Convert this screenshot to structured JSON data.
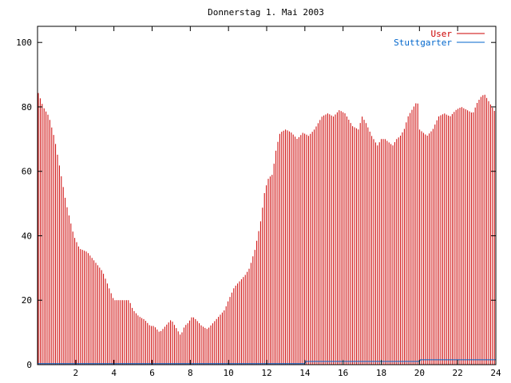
{
  "chart_data": {
    "type": "bar",
    "title": "Donnerstag 1. Mai 2003",
    "xlabel": "",
    "ylabel": "",
    "xlim": [
      0,
      24
    ],
    "ylim": [
      0,
      105
    ],
    "x_ticks": [
      2,
      4,
      6,
      8,
      10,
      12,
      14,
      16,
      18,
      20,
      22,
      24
    ],
    "y_ticks": [
      0,
      20,
      40,
      60,
      80,
      100
    ],
    "grid": false,
    "legend_position": "top-right",
    "colors": {
      "User": "#cc0000",
      "Stuttgarter": "#0066cc"
    },
    "x": [
      0,
      1,
      2,
      3,
      4,
      5,
      6,
      7,
      8,
      9,
      10,
      11,
      12,
      13,
      14,
      15,
      16,
      17,
      18,
      19,
      20,
      21,
      22,
      23,
      24
    ],
    "series": [
      {
        "name": "User",
        "y_keypoints": [
          85,
          80,
          77,
          70,
          60,
          50,
          40,
          36,
          35,
          32,
          29,
          20,
          20,
          20,
          17,
          15,
          14,
          12,
          12,
          10,
          12,
          14,
          12,
          9,
          12,
          13,
          15,
          14,
          12,
          11,
          13,
          15,
          17,
          20,
          24,
          26,
          28,
          30,
          36,
          45,
          54,
          58,
          59,
          67,
          72,
          73,
          72,
          70,
          72,
          71,
          73,
          75,
          77,
          78,
          77,
          79,
          78,
          76,
          74,
          73,
          77,
          75,
          71,
          68,
          70,
          70,
          69,
          68,
          70,
          71,
          73,
          77,
          79,
          81,
          82,
          73,
          71,
          73,
          77,
          78,
          77,
          79,
          80,
          79,
          78,
          81,
          83,
          84,
          82,
          80,
          78
        ],
        "x_keypoints": [
          0,
          0.3,
          0.6,
          0.9,
          1.2,
          1.5,
          1.9,
          2.2,
          2.6,
          3.0,
          3.4,
          4.0,
          4.4,
          4.8,
          5.0,
          5.3,
          5.6,
          5.9,
          6.1,
          6.4,
          6.7,
          7.0,
          7.2,
          7.5,
          7.7,
          7.9,
          8.1,
          8.3,
          8.6,
          8.9,
          9.2,
          9.5,
          9.8,
          10.0,
          10.3,
          10.6,
          10.9,
          11.1,
          11.4,
          11.7,
          11.9,
          12.1,
          12.3,
          12.5,
          12.7,
          13.0,
          13.3,
          13.6,
          13.9,
          14.2,
          14.5,
          14.7,
          14.9,
          15.2,
          15.5,
          15.8,
          16.1,
          16.3,
          16.5,
          16.8,
          17.0,
          17.2,
          17.5,
          17.8,
          18.0,
          18.2,
          18.4,
          18.6,
          18.8,
          19.0,
          19.2,
          19.4,
          19.6,
          19.8,
          19.9,
          20.0,
          20.4,
          20.7,
          21.0,
          21.3,
          21.6,
          21.9,
          22.2,
          22.5,
          22.8,
          23.0,
          23.2,
          23.4,
          23.6,
          23.8,
          24.0
        ]
      },
      {
        "name": "Stuttgarter",
        "x_keypoints": [
          0,
          14,
          14.05,
          20,
          20.05,
          24
        ],
        "y_keypoints": [
          0.3,
          0.3,
          1,
          1,
          1.5,
          1.5
        ]
      }
    ]
  }
}
